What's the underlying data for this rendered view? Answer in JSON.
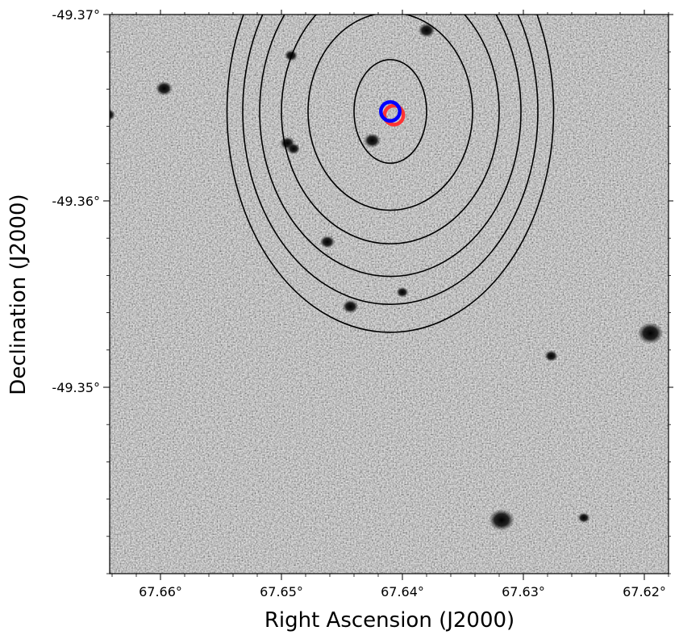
{
  "figure": {
    "xlabel": "Right Ascension (J2000)",
    "ylabel": "Declination (J2000)",
    "x_ticks": [
      {
        "label": "67.66°",
        "value": 67.66
      },
      {
        "label": "67.65°",
        "value": 67.65
      },
      {
        "label": "67.64°",
        "value": 67.64
      },
      {
        "label": "67.63°",
        "value": 67.63
      },
      {
        "label": "67.62°",
        "value": 67.62
      }
    ],
    "y_ticks": [
      {
        "label": "-49.37°",
        "value": -49.37
      },
      {
        "label": "-49.36°",
        "value": -49.36
      },
      {
        "label": "-49.35°",
        "value": -49.35
      }
    ],
    "x_range": [
      67.6642,
      67.618
    ],
    "y_range": [
      -49.37,
      -49.34
    ],
    "background": "grayscale sky image with faint point sources",
    "contour_color": "#000000",
    "contours": [
      {
        "center": [
          67.641,
          -49.3648
        ],
        "semi_axis_ra": 0.003,
        "semi_axis_dec": 0.00278
      },
      {
        "center": [
          67.641,
          -49.3648
        ],
        "semi_axis_ra": 0.0068,
        "semi_axis_dec": 0.0053
      },
      {
        "center": [
          67.641,
          -49.3648
        ],
        "semi_axis_ra": 0.009,
        "semi_axis_dec": 0.0071
      },
      {
        "center": [
          67.641,
          -49.3648
        ],
        "semi_axis_ra": 0.0108,
        "semi_axis_dec": 0.00885
      },
      {
        "center": [
          67.641,
          -49.3648
        ],
        "semi_axis_ra": 0.0122,
        "semi_axis_dec": 0.01035
      },
      {
        "center": [
          67.641,
          -49.3648
        ],
        "semi_axis_ra": 0.0135,
        "semi_axis_dec": 0.01185
      }
    ],
    "markers": [
      {
        "name": "red-position-circle",
        "color": "#ff3333",
        "ra": 67.6407,
        "dec": -49.3646,
        "radius_ra": 0.00078
      },
      {
        "name": "blue-position-circle",
        "color": "#0000ff",
        "ra": 67.641,
        "dec": -49.3648,
        "radius_ra": 0.00078
      }
    ],
    "sources": [
      {
        "ra": 67.6318,
        "dec": -49.34288,
        "size": 1.0
      },
      {
        "ra": 67.6195,
        "dec": -49.3529,
        "size": 1.0
      },
      {
        "ra": 67.6597,
        "dec": -49.36603,
        "size": 0.55
      },
      {
        "ra": 67.638,
        "dec": -49.36915,
        "size": 0.55
      },
      {
        "ra": 67.6425,
        "dec": -49.36324,
        "size": 0.55
      },
      {
        "ra": 67.6443,
        "dec": -49.35433,
        "size": 0.5
      },
      {
        "ra": 67.6462,
        "dec": -49.3578,
        "size": 0.45
      },
      {
        "ra": 67.6495,
        "dec": -49.3631,
        "size": 0.45
      },
      {
        "ra": 67.6643,
        "dec": -49.36462,
        "size": 0.4
      },
      {
        "ra": 67.6492,
        "dec": -49.3678,
        "size": 0.35
      },
      {
        "ra": 67.6277,
        "dec": -49.35168,
        "size": 0.35
      },
      {
        "ra": 67.649,
        "dec": -49.3628,
        "size": 0.35
      },
      {
        "ra": 67.64,
        "dec": -49.3551,
        "size": 0.3
      },
      {
        "ra": 67.625,
        "dec": -49.343,
        "size": 0.3
      }
    ]
  }
}
